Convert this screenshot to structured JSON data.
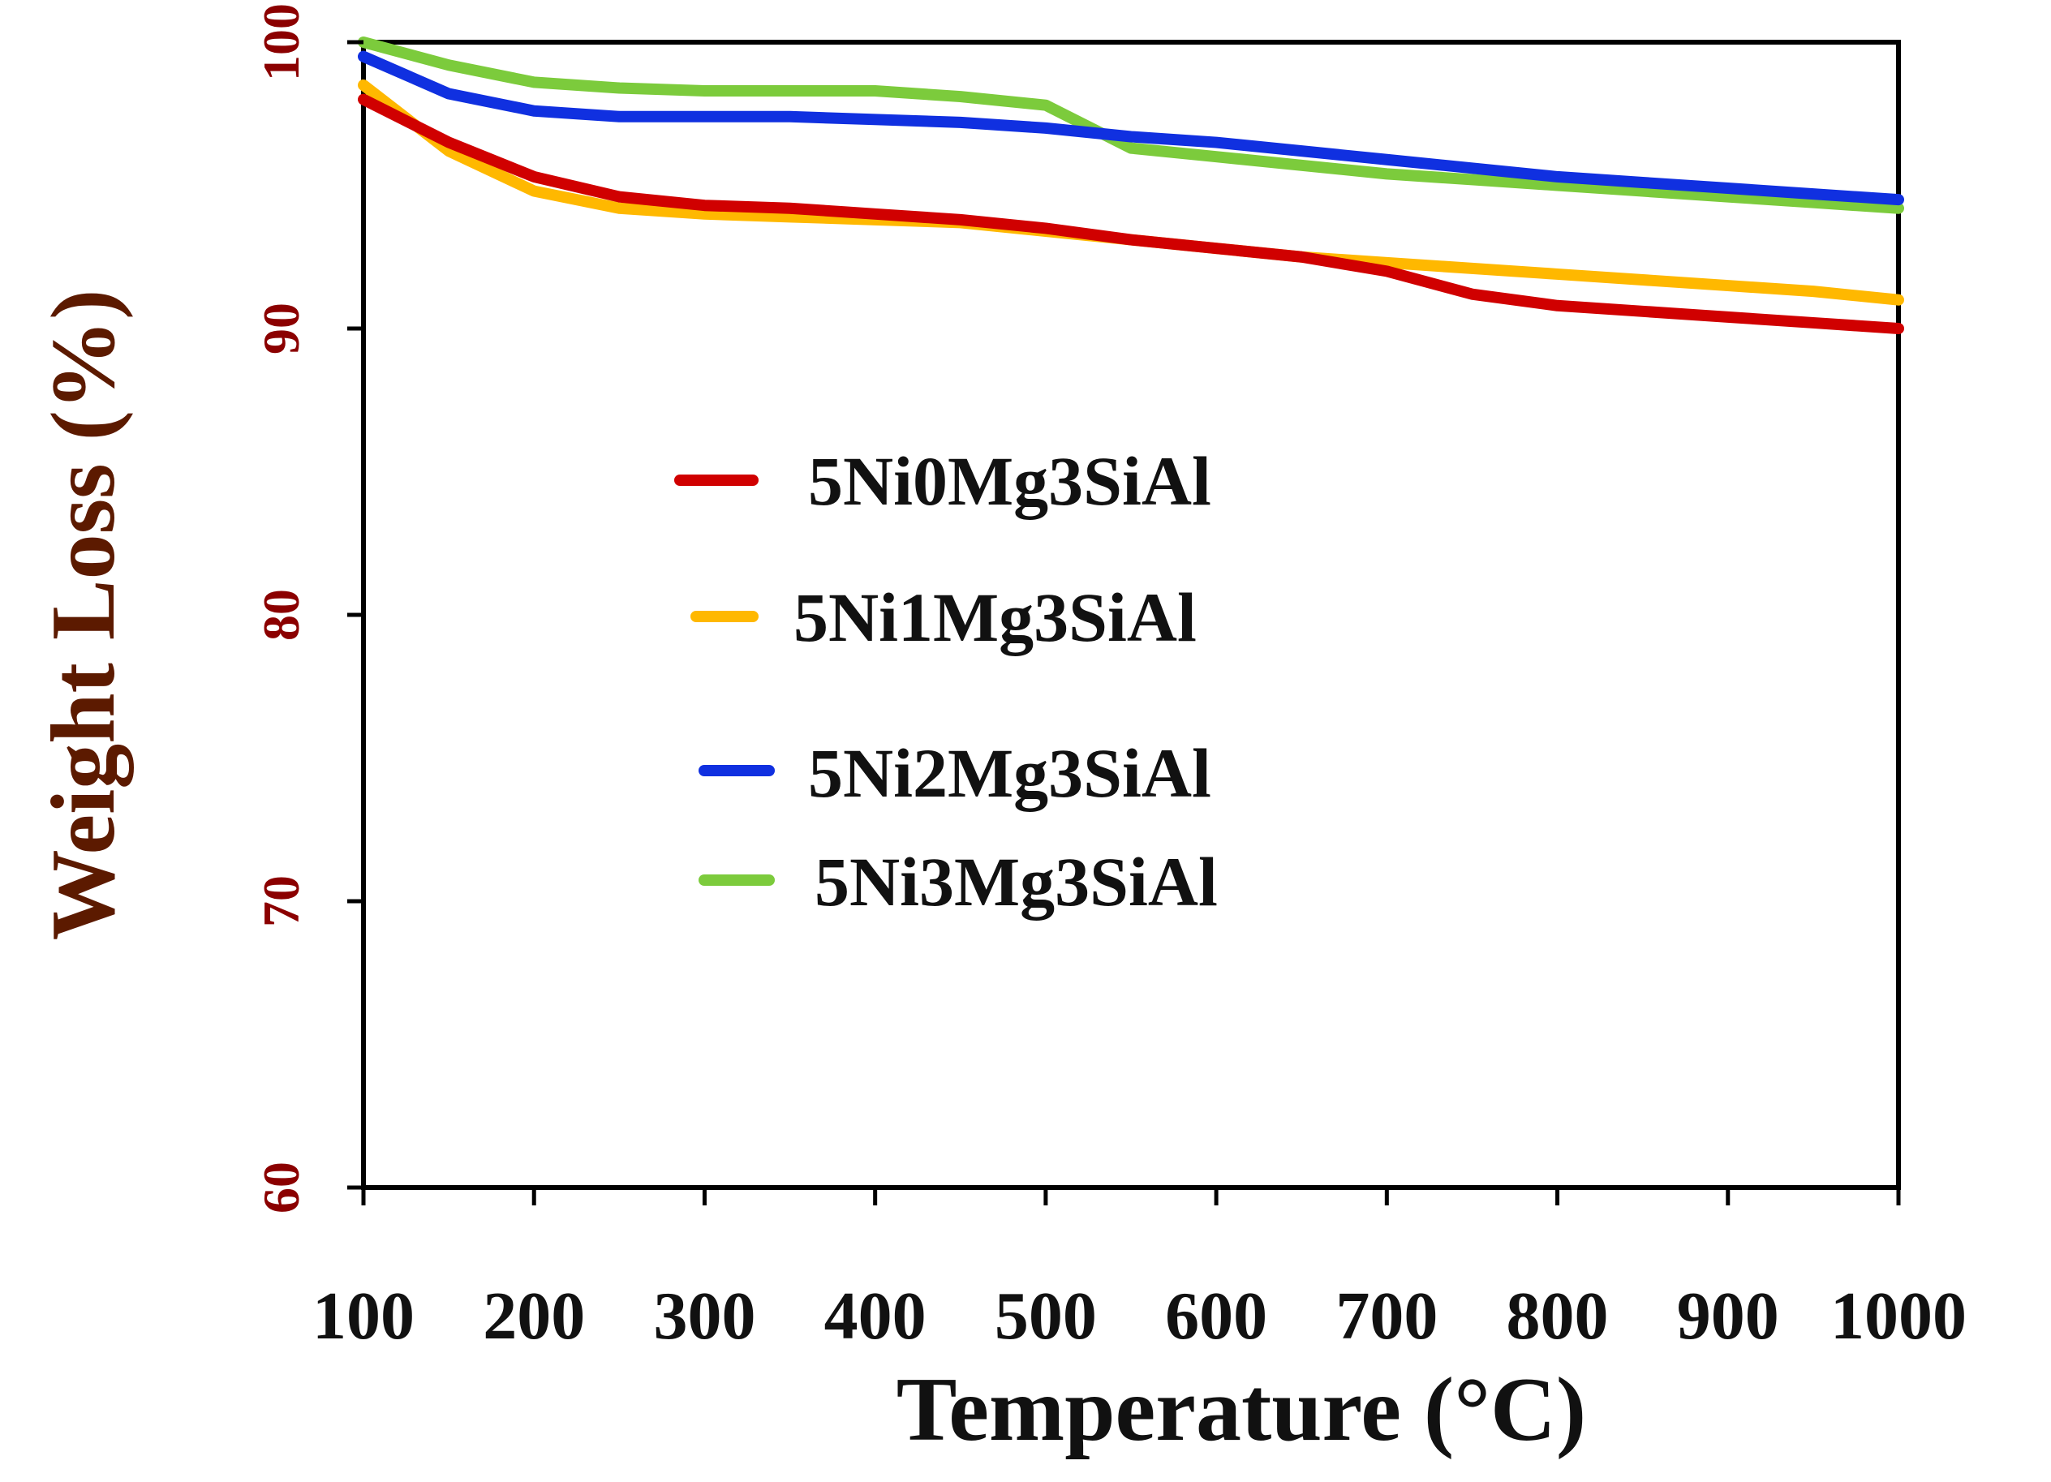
{
  "chart_data": {
    "type": "line",
    "title": "",
    "xlabel": "Temperature (°C)",
    "ylabel": "Weight Loss (%)",
    "xlim": [
      100,
      1000
    ],
    "ylim": [
      60,
      100
    ],
    "x_ticks": [
      100,
      200,
      300,
      400,
      500,
      600,
      700,
      800,
      900,
      1000
    ],
    "y_ticks": [
      60,
      70,
      80,
      90,
      100
    ],
    "legend_position": "center",
    "grid": false,
    "colors": {
      "axis": "#000000",
      "text": "#111111",
      "ytick": "#8B0000",
      "ylabel": "#5C1A00"
    },
    "series": [
      {
        "name": "5Ni0Mg3SiAl",
        "color": "#D00000",
        "x": [
          100,
          150,
          200,
          250,
          300,
          350,
          400,
          450,
          500,
          550,
          600,
          650,
          700,
          750,
          800,
          850,
          900,
          950,
          1000
        ],
        "y": [
          98.0,
          96.5,
          95.3,
          94.6,
          94.3,
          94.2,
          94.0,
          93.8,
          93.5,
          93.1,
          92.8,
          92.5,
          92.0,
          91.2,
          90.8,
          90.6,
          90.4,
          90.2,
          90.0
        ]
      },
      {
        "name": "5Ni1Mg3SiAl",
        "color": "#FFB800",
        "x": [
          100,
          150,
          200,
          250,
          300,
          350,
          400,
          450,
          500,
          550,
          600,
          650,
          700,
          750,
          800,
          850,
          900,
          950,
          1000
        ],
        "y": [
          98.5,
          96.2,
          94.8,
          94.2,
          94.0,
          93.9,
          93.8,
          93.7,
          93.4,
          93.1,
          92.8,
          92.5,
          92.3,
          92.1,
          91.9,
          91.7,
          91.5,
          91.3,
          91.0
        ]
      },
      {
        "name": "5Ni2Mg3SiAl",
        "color": "#1030E0",
        "x": [
          100,
          150,
          200,
          250,
          300,
          350,
          400,
          450,
          500,
          550,
          600,
          650,
          700,
          750,
          800,
          850,
          900,
          950,
          1000
        ],
        "y": [
          99.5,
          98.2,
          97.6,
          97.4,
          97.4,
          97.4,
          97.3,
          97.2,
          97.0,
          96.7,
          96.5,
          96.2,
          95.9,
          95.6,
          95.3,
          95.1,
          94.9,
          94.7,
          94.5
        ]
      },
      {
        "name": "5Ni3Mg3SiAl",
        "color": "#7CCB3C",
        "x": [
          100,
          150,
          200,
          250,
          300,
          350,
          400,
          450,
          500,
          550,
          600,
          650,
          700,
          750,
          800,
          850,
          900,
          950,
          1000
        ],
        "y": [
          100.0,
          99.2,
          98.6,
          98.4,
          98.3,
          98.3,
          98.3,
          98.1,
          97.8,
          96.3,
          96.0,
          95.7,
          95.4,
          95.2,
          95.0,
          94.8,
          94.6,
          94.4,
          94.2
        ]
      }
    ]
  }
}
